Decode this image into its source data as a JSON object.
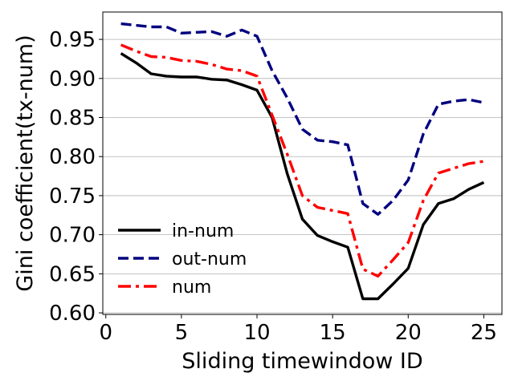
{
  "chart_data": {
    "type": "line",
    "title": "",
    "xlabel": "Sliding timewindow ID",
    "ylabel": "Gini coefficient(tx-num)",
    "xlim": [
      -0.2,
      26.2
    ],
    "ylim": [
      0.598,
      0.985
    ],
    "xticks": [
      0,
      5,
      10,
      15,
      20,
      25
    ],
    "xtick_labels": [
      "0",
      "5",
      "10",
      "15",
      "20",
      "25"
    ],
    "yticks": [
      0.6,
      0.65,
      0.7,
      0.75,
      0.8,
      0.85,
      0.9,
      0.95
    ],
    "ytick_labels": [
      "0.60",
      "0.65",
      "0.70",
      "0.75",
      "0.80",
      "0.85",
      "0.90",
      "0.95"
    ],
    "grid": "horizontal",
    "legend_position": "lower-left",
    "x": [
      1,
      2,
      3,
      4,
      5,
      6,
      7,
      8,
      9,
      10,
      11,
      12,
      13,
      14,
      15,
      16,
      17,
      18,
      19,
      20,
      21,
      22,
      23,
      24,
      25
    ],
    "series": [
      {
        "name": "in-num",
        "color": "#000000",
        "dash": "solid",
        "values": [
          0.932,
          0.92,
          0.906,
          0.903,
          0.902,
          0.902,
          0.899,
          0.898,
          0.892,
          0.885,
          0.85,
          0.778,
          0.72,
          0.699,
          0.691,
          0.684,
          0.618,
          0.618,
          0.637,
          0.657,
          0.713,
          0.74,
          0.746,
          0.758,
          0.767
        ]
      },
      {
        "name": "out-num",
        "color": "#00007f",
        "dash": "dashed",
        "values": [
          0.97,
          0.968,
          0.966,
          0.966,
          0.958,
          0.959,
          0.96,
          0.954,
          0.962,
          0.954,
          0.91,
          0.875,
          0.835,
          0.821,
          0.819,
          0.815,
          0.74,
          0.726,
          0.744,
          0.77,
          0.829,
          0.867,
          0.871,
          0.873,
          0.869
        ]
      },
      {
        "name": "num",
        "color": "#ff0000",
        "dash": "dashdot",
        "values": [
          0.943,
          0.935,
          0.928,
          0.927,
          0.923,
          0.922,
          0.918,
          0.912,
          0.91,
          0.903,
          0.853,
          0.803,
          0.75,
          0.735,
          0.731,
          0.727,
          0.656,
          0.647,
          0.668,
          0.69,
          0.744,
          0.779,
          0.785,
          0.791,
          0.794
        ]
      }
    ]
  }
}
